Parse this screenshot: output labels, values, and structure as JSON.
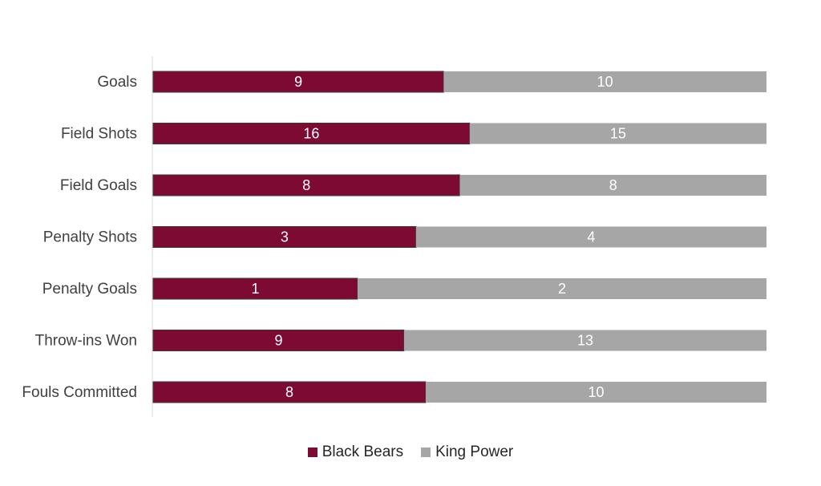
{
  "chart_data": {
    "type": "bar",
    "orientation": "horizontal",
    "stacking": "percent",
    "categories": [
      "Goals",
      "Field Shots",
      "Field Goals",
      "Penalty Shots",
      "Penalty Goals",
      "Throw-ins Won",
      "Fouls Committed"
    ],
    "series": [
      {
        "name": "Black Bears",
        "values": [
          9,
          16,
          8,
          3,
          1,
          9,
          8
        ],
        "color": "#7d0a33"
      },
      {
        "name": "King Power",
        "values": [
          10,
          15,
          8,
          4,
          2,
          13,
          10
        ],
        "color": "#a6a6a6"
      }
    ],
    "title": "",
    "xlabel": "",
    "ylabel": "",
    "grid": false,
    "legend_position": "bottom"
  }
}
